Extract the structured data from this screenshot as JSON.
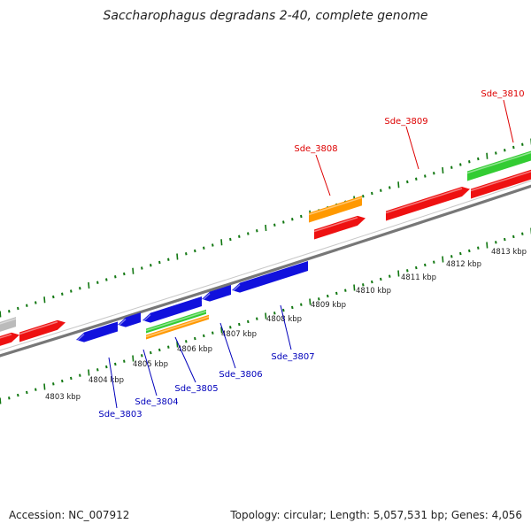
{
  "title": "Saccharophagus degradans 2-40, complete genome",
  "footer": {
    "accession": "Accession: NC_007912",
    "summary": "Topology: circular; Length: 5,057,531 bp; Genes: 4,056"
  },
  "colors": {
    "forward_cds": "#ee1111",
    "reverse_cds": "#1111dd",
    "rna_green": "#33cc33",
    "rna_orange": "#ff9900",
    "grey_feature": "#bbbbbb",
    "backbone": "#777777",
    "tick_green": "#117711",
    "forward_label": "#dd0000",
    "reverse_label": "#0000bb"
  },
  "kbp_ticks": [
    {
      "label": "4803 kbp"
    },
    {
      "label": "4804 kbp"
    },
    {
      "label": "4805 kbp"
    },
    {
      "label": "4806 kbp"
    },
    {
      "label": "4807 kbp"
    },
    {
      "label": "4808 kbp"
    },
    {
      "label": "4809 kbp"
    },
    {
      "label": "4810 kbp"
    },
    {
      "label": "4811 kbp"
    },
    {
      "label": "4812 kbp"
    },
    {
      "label": "4813 kbp"
    }
  ],
  "forward_genes": [
    {
      "name": "Sde_3808"
    },
    {
      "name": "Sde_3809"
    },
    {
      "name": "Sde_3810"
    }
  ],
  "reverse_genes": [
    {
      "name": "Sde_3803"
    },
    {
      "name": "Sde_3804"
    },
    {
      "name": "Sde_3805"
    },
    {
      "name": "Sde_3806"
    },
    {
      "name": "Sde_3807"
    }
  ]
}
